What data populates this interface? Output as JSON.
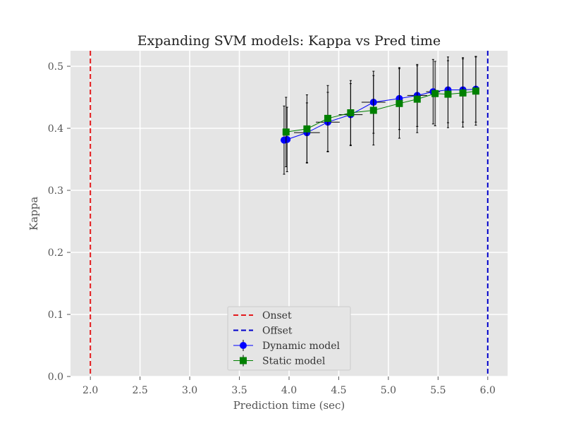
{
  "chart_data": {
    "type": "line",
    "title": "Expanding SVM models: Kappa vs Pred time",
    "xlabel": "Prediction time (sec)",
    "ylabel": "Kappa",
    "xlim": [
      1.8,
      6.2
    ],
    "ylim": [
      0.0,
      0.525
    ],
    "xticks": [
      "2.0",
      "2.5",
      "3.0",
      "3.5",
      "4.0",
      "4.5",
      "5.0",
      "5.5",
      "6.0"
    ],
    "yticks": [
      "0.0",
      "0.1",
      "0.2",
      "0.3",
      "0.4",
      "0.5"
    ],
    "grid": true,
    "legend_position": "lower-center",
    "vlines": [
      {
        "name": "Onset",
        "x": 2.0,
        "color": "#e41a1c",
        "style": "dashed"
      },
      {
        "name": "Offset",
        "x": 6.0,
        "color": "#0000cc",
        "style": "dashed"
      }
    ],
    "series": [
      {
        "name": "Dynamic model",
        "color": "#0000ff",
        "marker": "circle",
        "x": [
          3.95,
          3.98,
          4.18,
          4.39,
          4.62,
          4.85,
          5.11,
          5.29,
          5.45,
          5.6,
          5.75,
          5.88
        ],
        "y": [
          0.381,
          0.382,
          0.393,
          0.41,
          0.422,
          0.442,
          0.448,
          0.453,
          0.459,
          0.462,
          0.462,
          0.463
        ],
        "yerr": [
          0.055,
          0.052,
          0.048,
          0.048,
          0.05,
          0.05,
          0.05,
          0.05,
          0.052,
          0.053,
          0.052,
          0.053
        ],
        "xerr": [
          0.0,
          0.0,
          0.13,
          0.12,
          0.12,
          0.12,
          0.0,
          0.1,
          0.07,
          0.0,
          0.0,
          0.0
        ]
      },
      {
        "name": "Static model",
        "color": "#008000",
        "marker": "square",
        "x": [
          3.97,
          4.18,
          4.39,
          4.62,
          4.85,
          5.11,
          5.29,
          5.47,
          5.6,
          5.75,
          5.88
        ],
        "y": [
          0.394,
          0.399,
          0.416,
          0.425,
          0.429,
          0.44,
          0.447,
          0.456,
          0.455,
          0.457,
          0.46
        ],
        "yerr": [
          0.056,
          0.055,
          0.053,
          0.052,
          0.056,
          0.056,
          0.054,
          0.052,
          0.054,
          0.055,
          0.055
        ]
      }
    ]
  }
}
